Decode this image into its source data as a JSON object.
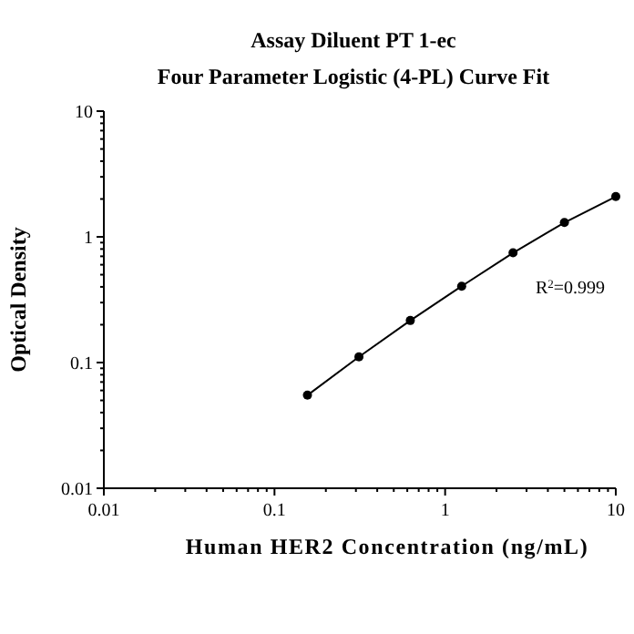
{
  "chart_data": {
    "type": "line",
    "title": "Assay Diluent PT 1-ec",
    "subtitle": "Four Parameter Logistic (4-PL) Curve Fit",
    "xlabel": "Human HER2 Concentration (ng/mL)",
    "ylabel": "Optical Density",
    "log": "xy",
    "marker": "circle",
    "line_style": "solid",
    "x": [
      0.156,
      0.3125,
      0.625,
      1.25,
      2.5,
      5,
      10
    ],
    "series": [
      {
        "color": "#000000",
        "values": [
          0.055,
          0.111,
          0.216,
          0.405,
          0.746,
          1.3,
          2.09
        ]
      }
    ],
    "annotations": [
      "R$^{2}$=0.999"
    ],
    "xlim": [
      0.01,
      10
    ],
    "ylim": [
      0.01,
      10
    ],
    "xticks": [
      {
        "value": 0.01,
        "label": "0.01"
      },
      {
        "value": 0.02,
        "label": null
      },
      {
        "value": 0.03,
        "label": null
      },
      {
        "value": 0.04,
        "label": null
      },
      {
        "value": 0.05,
        "label": null
      },
      {
        "value": 0.06,
        "label": null
      },
      {
        "value": 0.07,
        "label": null
      },
      {
        "value": 0.08,
        "label": null
      },
      {
        "value": 0.09,
        "label": null
      },
      {
        "value": 0.1,
        "label": "0.1"
      },
      {
        "value": 0.2,
        "label": null
      },
      {
        "value": 0.3,
        "label": null
      },
      {
        "value": 0.4,
        "label": null
      },
      {
        "value": 0.5,
        "label": null
      },
      {
        "value": 0.6,
        "label": null
      },
      {
        "value": 0.7,
        "label": null
      },
      {
        "value": 0.8,
        "label": null
      },
      {
        "value": 0.9,
        "label": null
      },
      1,
      {
        "value": 2,
        "label": null
      },
      {
        "value": 3,
        "label": null
      },
      {
        "value": 4,
        "label": null
      },
      {
        "value": 5,
        "label": null
      },
      {
        "value": 6,
        "label": null
      },
      {
        "value": 7,
        "label": null
      },
      {
        "value": 8,
        "label": null
      },
      {
        "value": 9,
        "label": null
      },
      10
    ],
    "yticks": [
      {
        "value": 0.01,
        "label": "0.01"
      },
      {
        "value": 0.02,
        "label": null
      },
      {
        "value": 0.03,
        "label": null
      },
      {
        "value": 0.04,
        "label": null
      },
      {
        "value": 0.05,
        "label": null
      },
      {
        "value": 0.06,
        "label": null
      },
      {
        "value": 0.07,
        "label": null
      },
      {
        "value": 0.08,
        "label": null
      },
      {
        "value": 0.09,
        "label": null
      },
      {
        "value": 0.1,
        "label": "0.1"
      },
      {
        "value": 0.2,
        "label": null
      },
      {
        "value": 0.3,
        "label": null
      },
      {
        "value": 0.4,
        "label": null
      },
      {
        "value": 0.5,
        "label": null
      },
      {
        "value": 0.6,
        "label": null
      },
      {
        "value": 0.7,
        "label": null
      },
      {
        "value": 0.8,
        "label": null
      },
      {
        "value": 0.9,
        "label": null
      },
      1,
      {
        "value": 2,
        "label": null
      },
      {
        "value": 3,
        "label": null
      },
      {
        "value": 4,
        "label": null
      },
      {
        "value": 5,
        "label": null
      },
      {
        "value": 6,
        "label": null
      },
      {
        "value": 7,
        "label": null
      },
      {
        "value": 8,
        "label": null
      },
      {
        "value": 9,
        "label": null
      },
      10
    ]
  }
}
